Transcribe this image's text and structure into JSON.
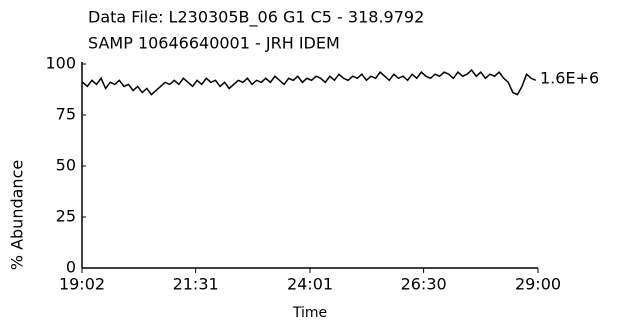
{
  "chart_data": {
    "type": "line",
    "title": "Data File: L230305B_06    G1  C5 - 318.9792",
    "subtitle": "SAMP 10646640001 - JRH IDEM",
    "annotation": "1.6E+6",
    "xlabel": "Time",
    "ylabel": "% Abundance",
    "xlim": [
      19.0333,
      29.0
    ],
    "ylim": [
      0,
      100
    ],
    "xticks": [
      {
        "value": 19.0333,
        "label": "19:02"
      },
      {
        "value": 21.5167,
        "label": "21:31"
      },
      {
        "value": 24.0167,
        "label": "24:01"
      },
      {
        "value": 26.5,
        "label": "26:30"
      },
      {
        "value": 29.0,
        "label": "29:00"
      }
    ],
    "yticks": [
      0,
      25,
      50,
      75,
      100
    ],
    "grid": false,
    "x": [
      19.05,
      19.15,
      19.25,
      19.35,
      19.45,
      19.55,
      19.65,
      19.75,
      19.85,
      19.95,
      20.05,
      20.15,
      20.25,
      20.35,
      20.45,
      20.55,
      20.65,
      20.75,
      20.85,
      20.95,
      21.05,
      21.15,
      21.25,
      21.35,
      21.45,
      21.55,
      21.65,
      21.75,
      21.85,
      21.95,
      22.05,
      22.15,
      22.25,
      22.35,
      22.45,
      22.55,
      22.65,
      22.75,
      22.85,
      22.95,
      23.05,
      23.15,
      23.25,
      23.35,
      23.45,
      23.55,
      23.65,
      23.75,
      23.85,
      23.95,
      24.05,
      24.15,
      24.25,
      24.35,
      24.45,
      24.55,
      24.65,
      24.75,
      24.85,
      24.95,
      25.05,
      25.15,
      25.25,
      25.35,
      25.45,
      25.55,
      25.65,
      25.75,
      25.85,
      25.95,
      26.05,
      26.15,
      26.25,
      26.35,
      26.45,
      26.55,
      26.65,
      26.75,
      26.85,
      26.95,
      27.05,
      27.15,
      27.25,
      27.35,
      27.45,
      27.55,
      27.65,
      27.75,
      27.85,
      27.95,
      28.05,
      28.15,
      28.25,
      28.35,
      28.45,
      28.55,
      28.65,
      28.75,
      28.85,
      28.95
    ],
    "series": [
      {
        "color": "#000000",
        "values": [
          91,
          89,
          92,
          90,
          93,
          88,
          91,
          90,
          92,
          89,
          90,
          87,
          89,
          86,
          88,
          85,
          87,
          89,
          91,
          90,
          92,
          90,
          93,
          91,
          89,
          92,
          90,
          93,
          91,
          92,
          89,
          91,
          88,
          90,
          92,
          91,
          93,
          90,
          92,
          91,
          93,
          91,
          94,
          92,
          90,
          93,
          92,
          94,
          91,
          93,
          92,
          94,
          93,
          91,
          94,
          92,
          95,
          93,
          92,
          94,
          93,
          95,
          92,
          94,
          93,
          96,
          94,
          92,
          95,
          93,
          94,
          92,
          95,
          93,
          96,
          94,
          93,
          95,
          94,
          96,
          95,
          93,
          96,
          94,
          95,
          97,
          94,
          96,
          93,
          95,
          94,
          96,
          93,
          91,
          86,
          85,
          89,
          95,
          93,
          92
        ]
      }
    ]
  }
}
